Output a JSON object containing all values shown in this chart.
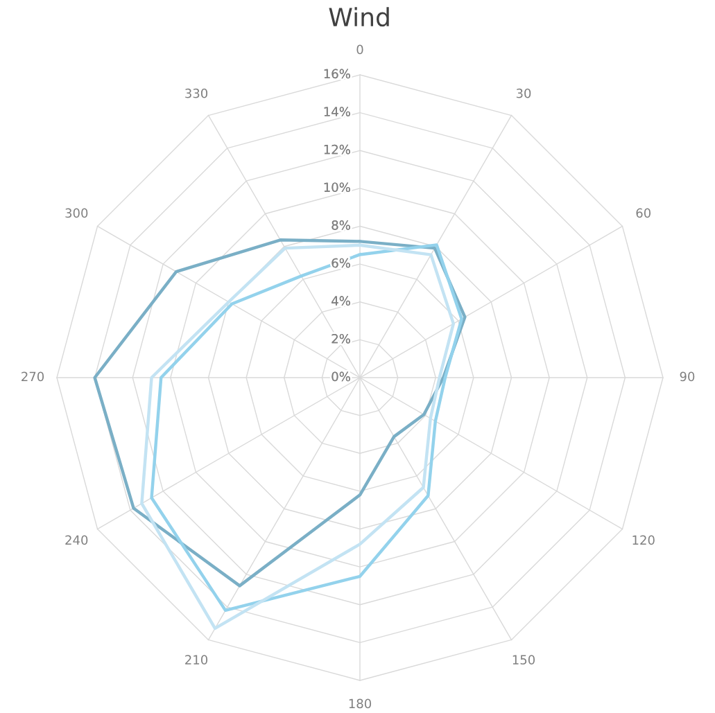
{
  "chart_data": {
    "type": "radar",
    "title": "Wind",
    "categories": [
      "0",
      "30",
      "60",
      "90",
      "120",
      "150",
      "180",
      "210",
      "240",
      "270",
      "300",
      "330"
    ],
    "series": [
      {
        "color": "#7aafc6",
        "values": [
          7.2,
          7.9,
          6.4,
          4.4,
          3.9,
          3.6,
          6.2,
          12.7,
          13.8,
          14.0,
          11.2,
          8.4
        ]
      },
      {
        "color": "#93d2ec",
        "values": [
          6.5,
          8.1,
          6.2,
          4.5,
          4.6,
          7.2,
          10.5,
          14.2,
          12.7,
          10.5,
          7.8,
          6.2
        ]
      },
      {
        "color": "#c3e3f3",
        "values": [
          7.0,
          7.5,
          5.7,
          4.2,
          4.3,
          6.7,
          8.8,
          15.3,
          13.3,
          11.0,
          8.0,
          7.9
        ]
      }
    ],
    "ylim": [
      0,
      16
    ],
    "yticks": [
      {
        "value": 0,
        "label": "0%"
      },
      {
        "value": 2,
        "label": "2%"
      },
      {
        "value": 4,
        "label": "4%"
      },
      {
        "value": 6,
        "label": "6%"
      },
      {
        "value": 8,
        "label": "8%"
      },
      {
        "value": 10,
        "label": "10%"
      },
      {
        "value": 12,
        "label": "12%"
      },
      {
        "value": 14,
        "label": "14%"
      },
      {
        "value": 16,
        "label": "16%"
      }
    ],
    "grid": true
  }
}
